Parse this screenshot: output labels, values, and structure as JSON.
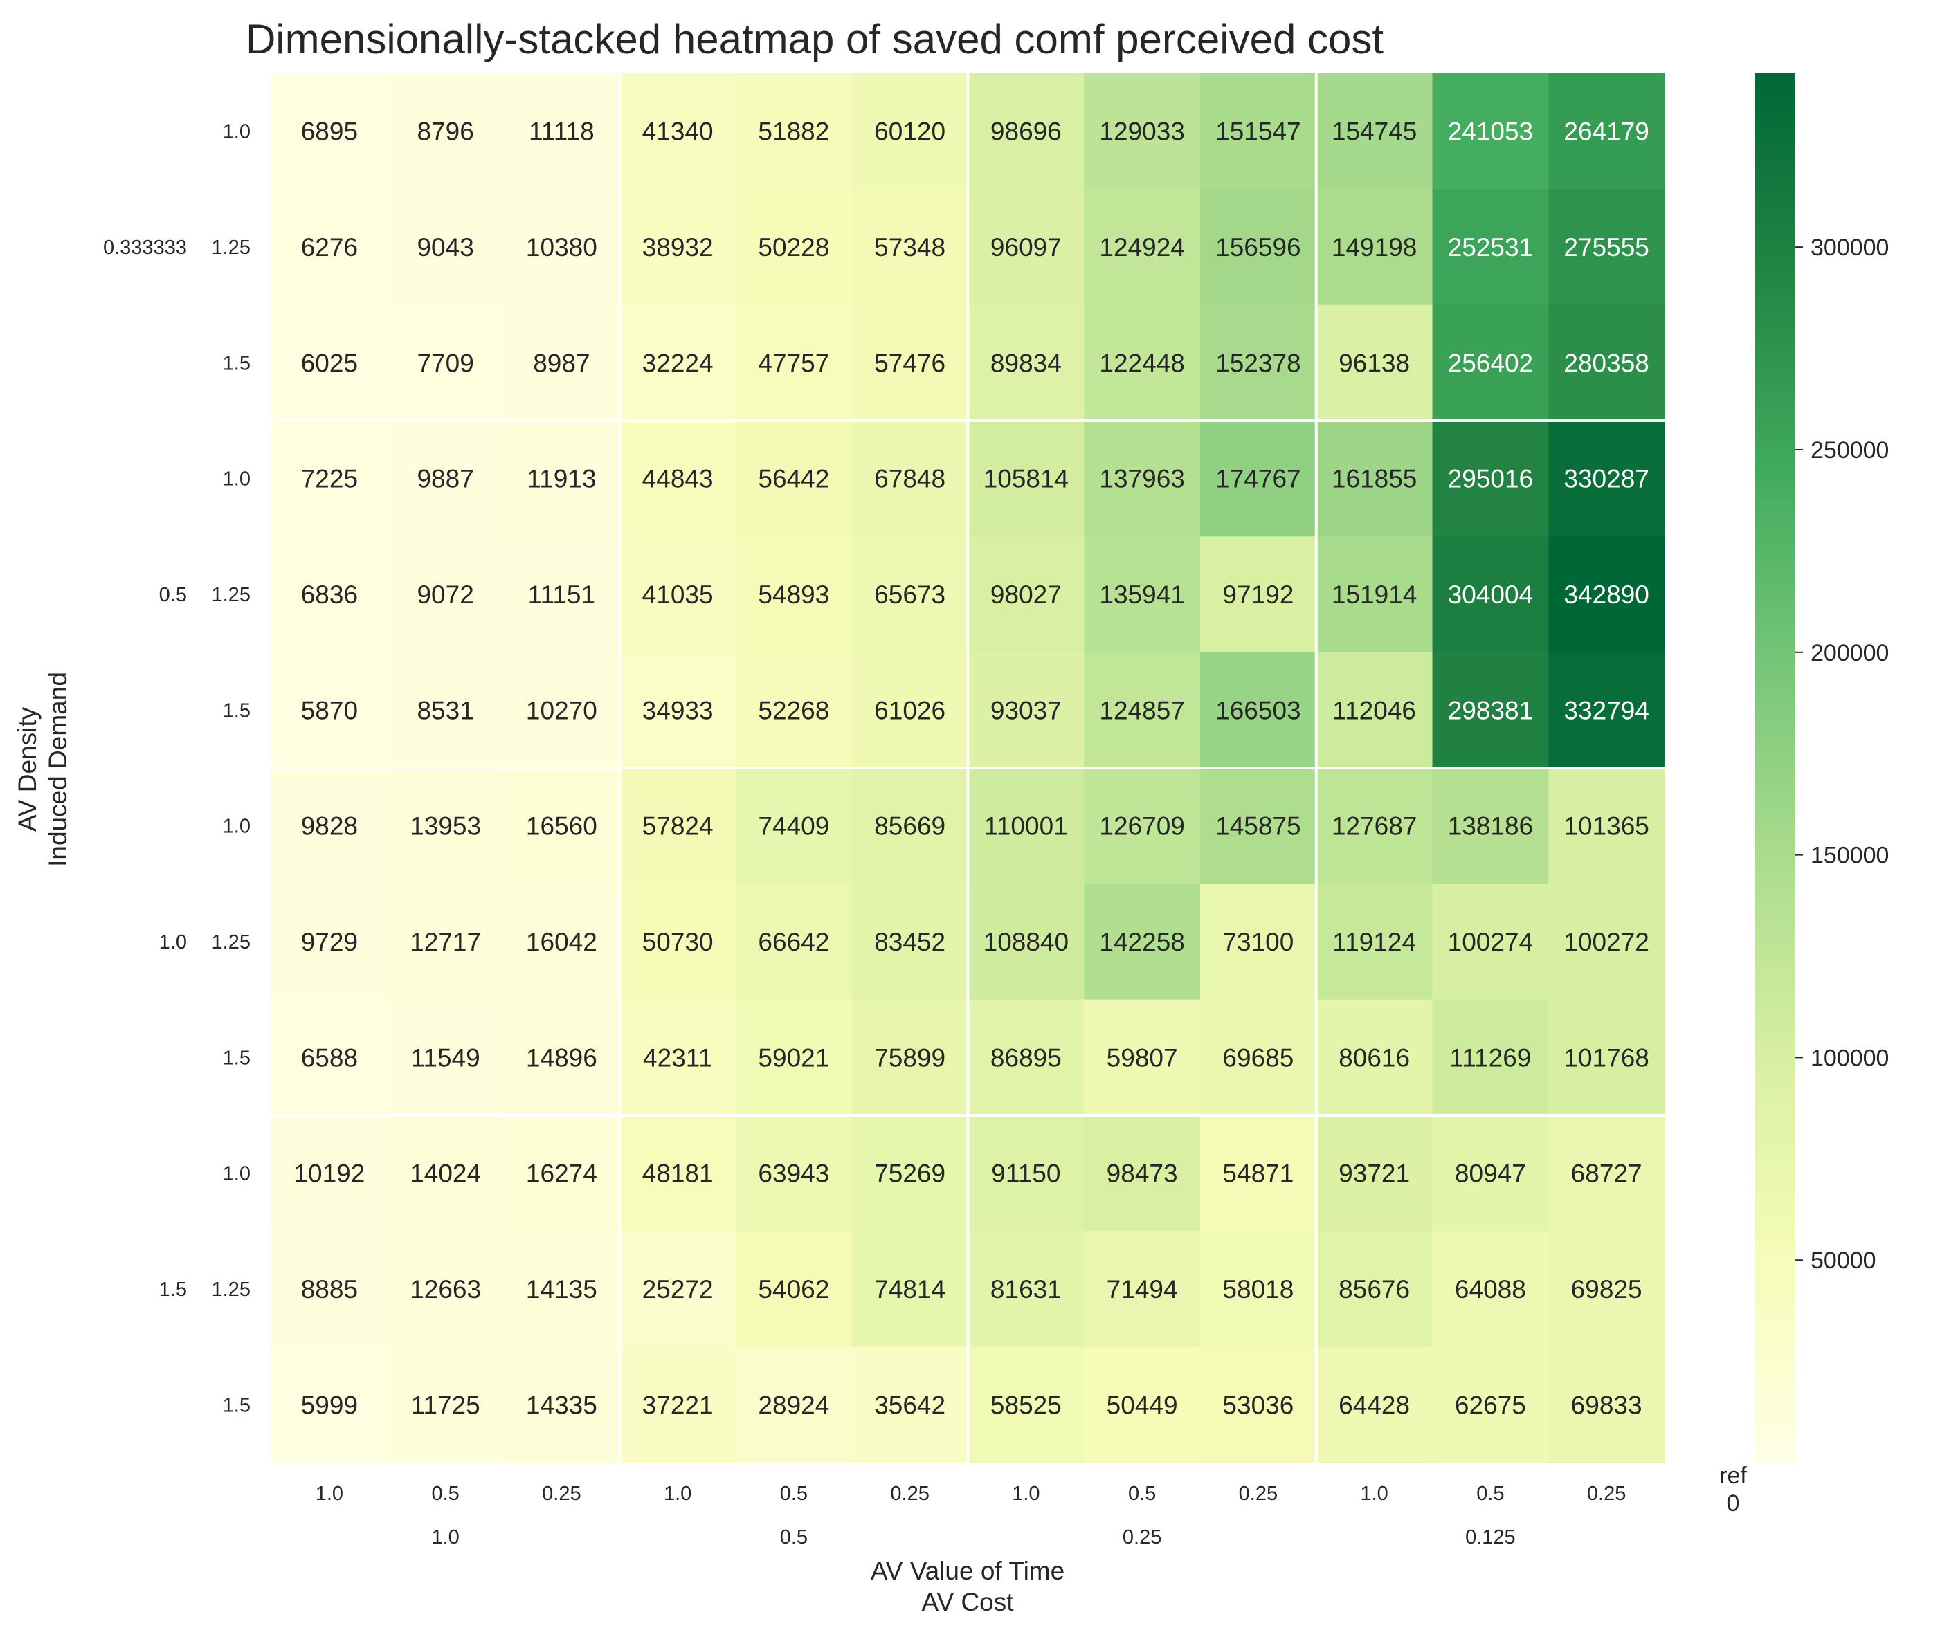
{
  "chart_data": {
    "type": "heatmap",
    "title": "Dimensionally-stacked heatmap of saved comf perceived cost",
    "xlabel_outer": "AV Cost",
    "xlabel_inner": "AV Value of Time",
    "ylabel_outer": "AV Density",
    "ylabel_inner": "Induced Demand",
    "x_outer_labels": [
      "1.0",
      "0.5",
      "0.25",
      "0.125"
    ],
    "x_inner_labels": [
      "1.0",
      "0.5",
      "0.25"
    ],
    "y_outer_labels": [
      "0.333333",
      "0.5",
      "1.0",
      "1.5"
    ],
    "y_inner_labels": [
      "1.0",
      "1.25",
      "1.5"
    ],
    "values": [
      [
        6895,
        8796,
        11118,
        41340,
        51882,
        60120,
        98696,
        129033,
        151547,
        154745,
        241053,
        264179
      ],
      [
        6276,
        9043,
        10380,
        38932,
        50228,
        57348,
        96097,
        124924,
        156596,
        149198,
        252531,
        275555
      ],
      [
        6025,
        7709,
        8987,
        32224,
        47757,
        57476,
        89834,
        122448,
        152378,
        96138,
        256402,
        280358
      ],
      [
        7225,
        9887,
        11913,
        44843,
        56442,
        67848,
        105814,
        137963,
        174767,
        161855,
        295016,
        330287
      ],
      [
        6836,
        9072,
        11151,
        41035,
        54893,
        65673,
        98027,
        135941,
        97192,
        151914,
        304004,
        342890
      ],
      [
        5870,
        8531,
        10270,
        34933,
        52268,
        61026,
        93037,
        124857,
        166503,
        112046,
        298381,
        332794
      ],
      [
        9828,
        13953,
        16560,
        57824,
        74409,
        85669,
        110001,
        126709,
        145875,
        127687,
        138186,
        101365
      ],
      [
        9729,
        12717,
        16042,
        50730,
        66642,
        83452,
        108840,
        142258,
        73100,
        119124,
        100274,
        100272
      ],
      [
        6588,
        11549,
        14896,
        42311,
        59021,
        75899,
        86895,
        59807,
        69685,
        80616,
        111269,
        101768
      ],
      [
        10192,
        14024,
        16274,
        48181,
        63943,
        75269,
        91150,
        98473,
        54871,
        93721,
        80947,
        68727
      ],
      [
        8885,
        12663,
        14135,
        25272,
        54062,
        74814,
        81631,
        71494,
        58018,
        85676,
        64088,
        69825
      ],
      [
        5999,
        11725,
        14335,
        37221,
        28924,
        35642,
        58525,
        50449,
        53036,
        64428,
        62675,
        69833
      ]
    ],
    "colormap": [
      "#ffffe5",
      "#f7fcb9",
      "#d9f0a3",
      "#addd8e",
      "#78c679",
      "#41ab5d",
      "#238443",
      "#006837"
    ],
    "color_range": [
      0,
      342890
    ],
    "colorbar_ticks": [
      50000,
      100000,
      150000,
      200000,
      250000,
      300000
    ],
    "colorbar_ref_label": "ref",
    "colorbar_ref_value": "0",
    "grid": false
  }
}
